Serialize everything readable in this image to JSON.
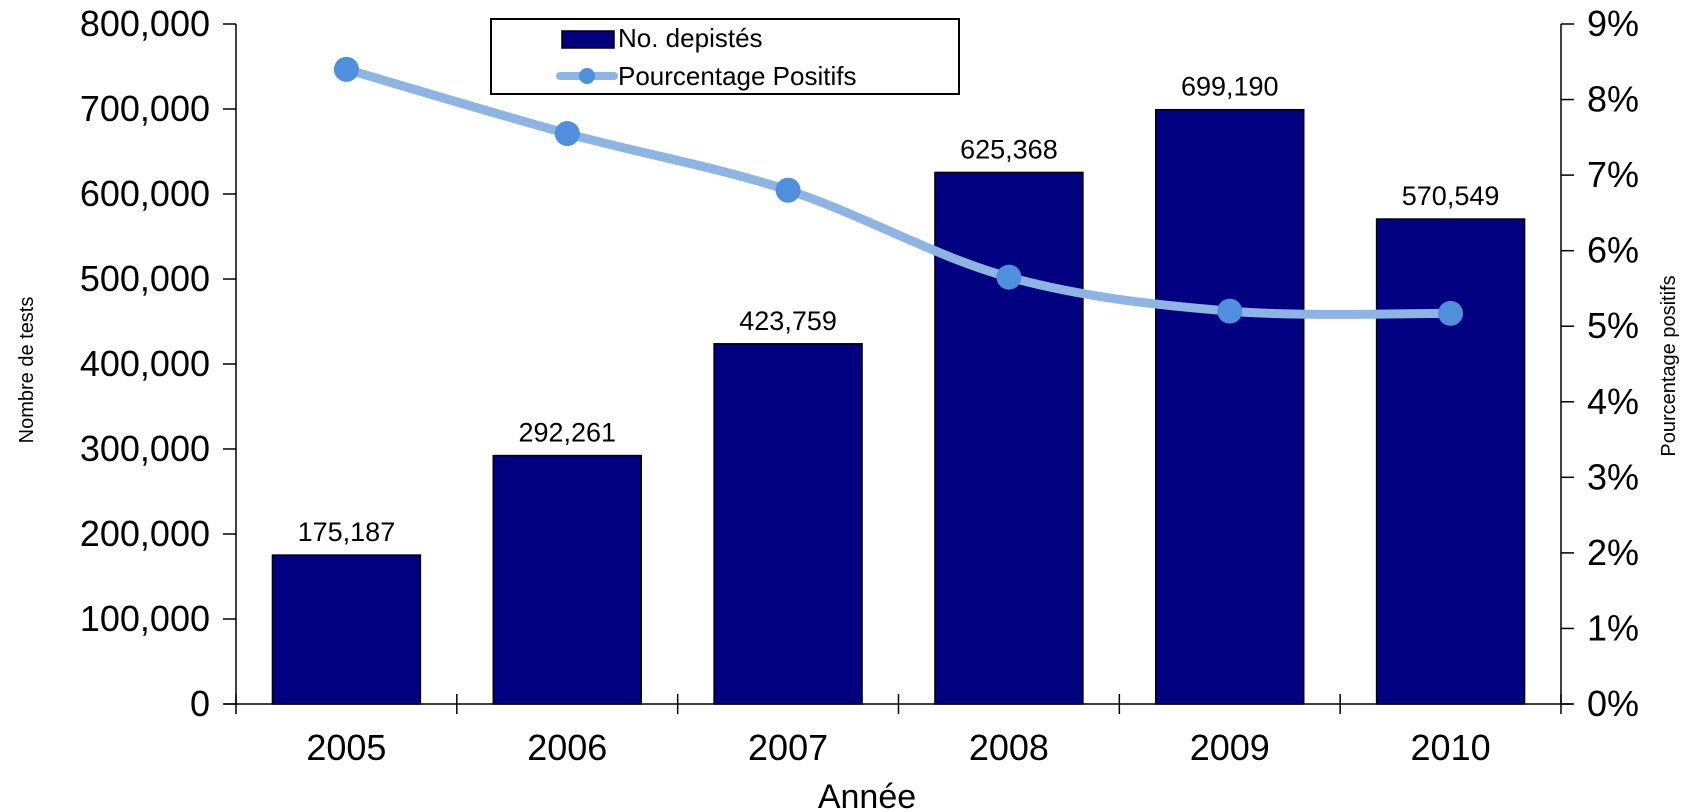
{
  "chart_data": {
    "type": "bar",
    "categories": [
      "2005",
      "2006",
      "2007",
      "2008",
      "2009",
      "2010"
    ],
    "series": [
      {
        "name": "No. depistés",
        "kind": "bar",
        "axis": "left",
        "color": "#000080",
        "values": [
          175187,
          292261,
          423759,
          625368,
          699190,
          570549
        ],
        "data_labels": [
          "175,187",
          "292,261",
          "423,759",
          "625,368",
          "699,190",
          "570,549"
        ]
      },
      {
        "name": "Pourcentage Positifs",
        "kind": "line",
        "axis": "right",
        "color": "#8DB4E2",
        "marker_color": "#4F8FDB",
        "values": [
          8.4,
          7.55,
          6.8,
          5.65,
          5.2,
          5.17
        ]
      }
    ],
    "xlabel": "Année",
    "ylabel": "Nombre de tests",
    "y2label": "Pourcentage positifs",
    "ylim": [
      0,
      800000
    ],
    "y2lim": [
      0,
      9
    ],
    "y_ticks": [
      "0",
      "100,000",
      "200,000",
      "300,000",
      "400,000",
      "500,000",
      "600,000",
      "700,000",
      "800,000"
    ],
    "y2_ticks": [
      "0%",
      "1%",
      "2%",
      "3%",
      "4%",
      "5%",
      "6%",
      "7%",
      "8%",
      "9%"
    ],
    "grid": false,
    "legend_position": "top-center"
  }
}
